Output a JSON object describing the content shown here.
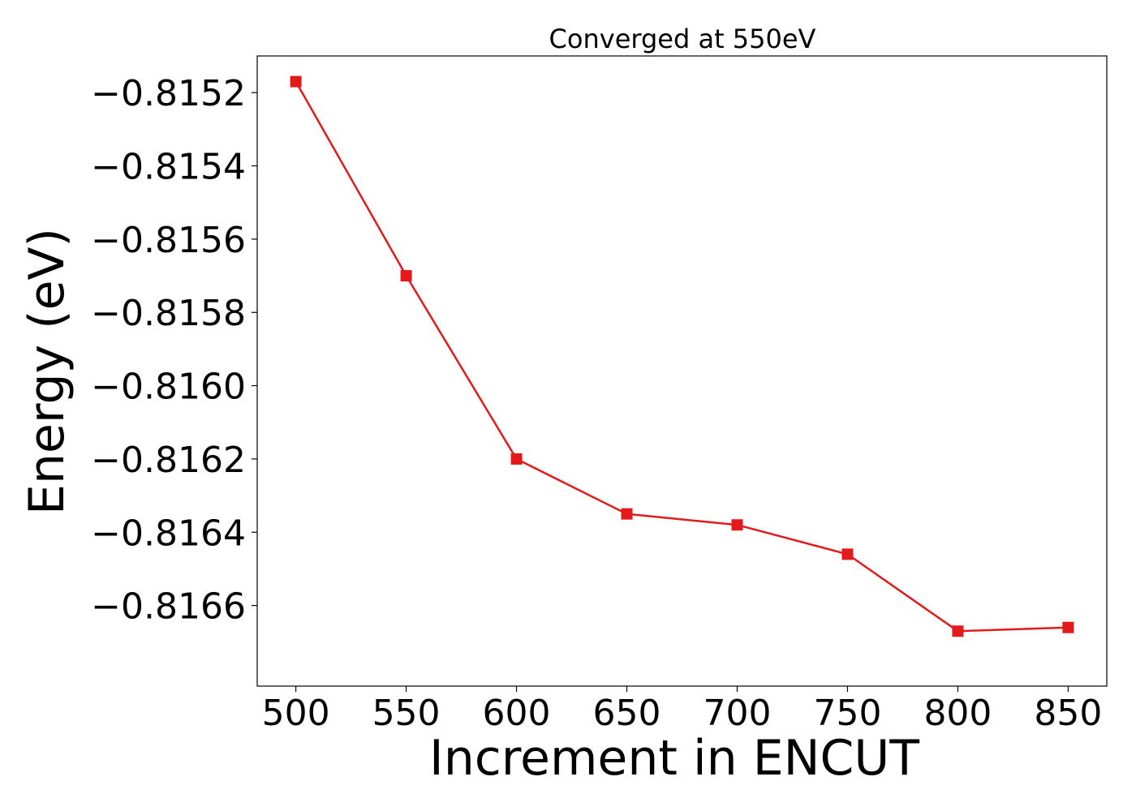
{
  "chart_data": {
    "type": "line",
    "title": "Converged at 550eV",
    "xlabel": "Increment in ENCUT",
    "ylabel": "Energy (eV)",
    "x": [
      500,
      550,
      600,
      650,
      700,
      750,
      800,
      850
    ],
    "series": [
      {
        "values": [
          -0.81517,
          -0.8157,
          -0.8162,
          -0.81635,
          -0.81638,
          -0.81646,
          -0.81667,
          -0.81666
        ],
        "color": "#e31a1c",
        "marker": "square"
      }
    ],
    "xticks": [
      "500",
      "550",
      "600",
      "650",
      "700",
      "750",
      "800",
      "850"
    ],
    "xtick_values": [
      500,
      550,
      600,
      650,
      700,
      750,
      800,
      850
    ],
    "yticks": [
      "−0.8152",
      "−0.8154",
      "−0.8156",
      "−0.8158",
      "−0.8160",
      "−0.8162",
      "−0.8164",
      "−0.8166"
    ],
    "ytick_values": [
      -0.8152,
      -0.8154,
      -0.8156,
      -0.8158,
      -0.816,
      -0.8162,
      -0.8164,
      -0.8166
    ],
    "xlim": [
      482.5,
      867.5
    ],
    "ylim": [
      -0.81682,
      -0.8151
    ],
    "grid": false,
    "legend": "none"
  }
}
